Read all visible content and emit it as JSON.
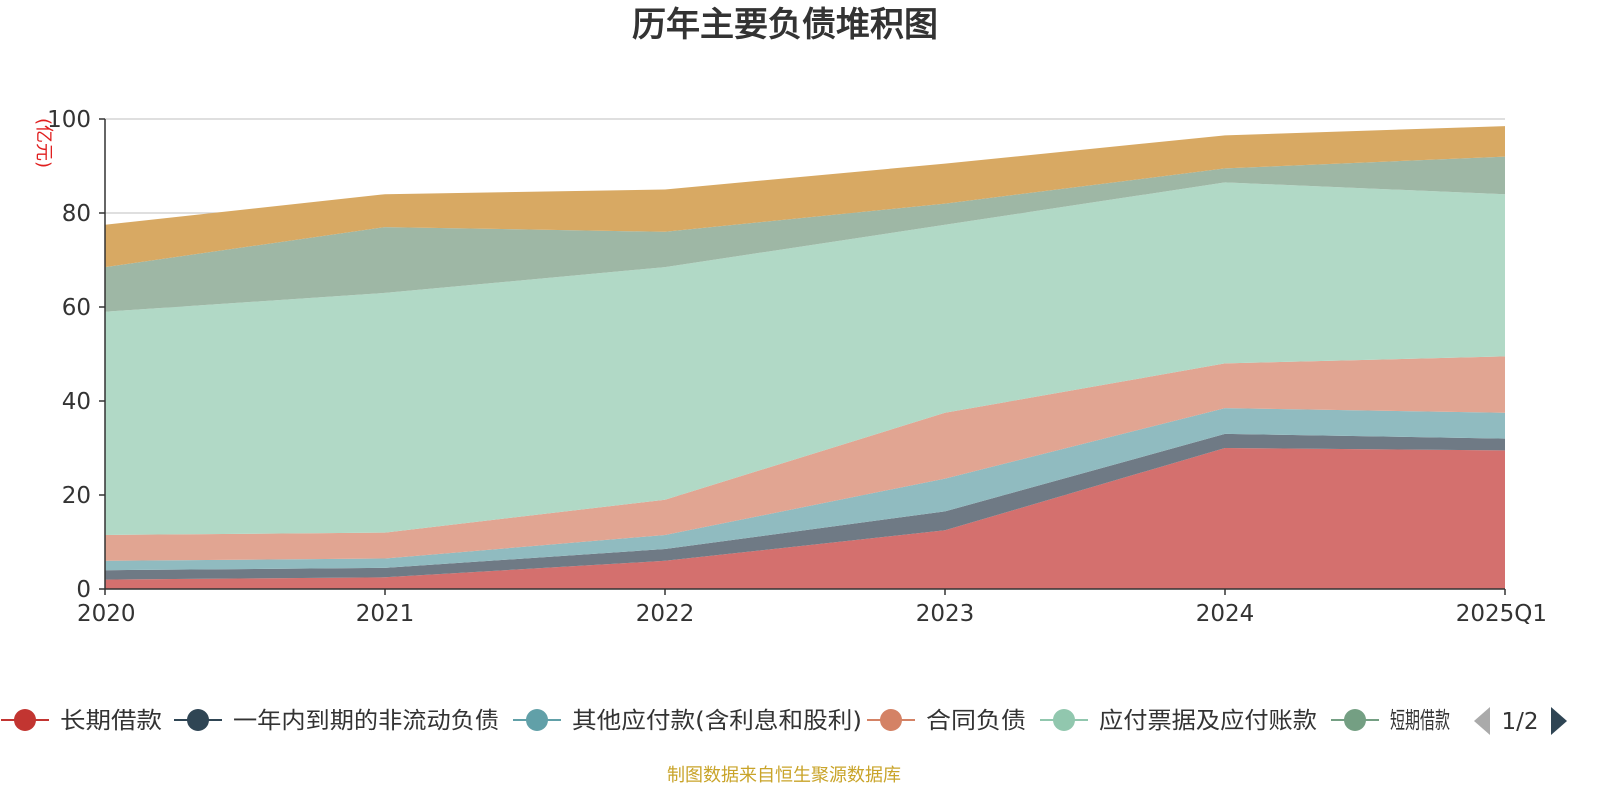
{
  "chart_data": {
    "type": "area",
    "stacked": true,
    "title": "历年主要负债堆积图",
    "unit_label": "(亿元)",
    "x": [
      "2020",
      "2021",
      "2022",
      "2023",
      "2024",
      "2025Q1"
    ],
    "ylim": [
      0,
      100
    ],
    "yticks": [
      0,
      20,
      40,
      60,
      80,
      100
    ],
    "grid": true,
    "series": [
      {
        "name": "长期借款",
        "color": "#c23531",
        "fill": "#d4706e",
        "values": [
          2.0,
          2.5,
          6.0,
          12.5,
          30.0,
          29.5
        ]
      },
      {
        "name": "一年内到期的非流动负债",
        "color": "#2f4554",
        "fill": "#6f7a85",
        "values": [
          2.0,
          2.0,
          2.5,
          4.0,
          3.0,
          2.5
        ]
      },
      {
        "name": "其他应付款(含利息和股利)",
        "color": "#61a0a8",
        "fill": "#90bbc0",
        "values": [
          2.0,
          2.0,
          3.0,
          7.0,
          5.5,
          5.5
        ]
      },
      {
        "name": "合同负债",
        "color": "#d48265",
        "fill": "#e1a592",
        "values": [
          5.5,
          5.5,
          7.5,
          14.0,
          9.5,
          12.0
        ]
      },
      {
        "name": "应付票据及应付账款",
        "color": "#91c7ae",
        "fill": "#b1d9c6",
        "values": [
          47.5,
          51.0,
          49.5,
          40.0,
          38.5,
          34.5
        ]
      },
      {
        "name": "短期借款",
        "color": "#749f83",
        "fill": "#9eb7a5",
        "values": [
          9.5,
          14.0,
          7.5,
          4.5,
          3.0,
          8.0
        ]
      },
      {
        "name": "",
        "color": "#ca8622",
        "fill": "#d8a963",
        "values": [
          9.0,
          7.0,
          9.0,
          8.5,
          7.0,
          6.5
        ]
      }
    ],
    "legend_position": "bottom",
    "legend_page": "1/2",
    "source_note": "制图数据来自恒生聚源数据库"
  }
}
